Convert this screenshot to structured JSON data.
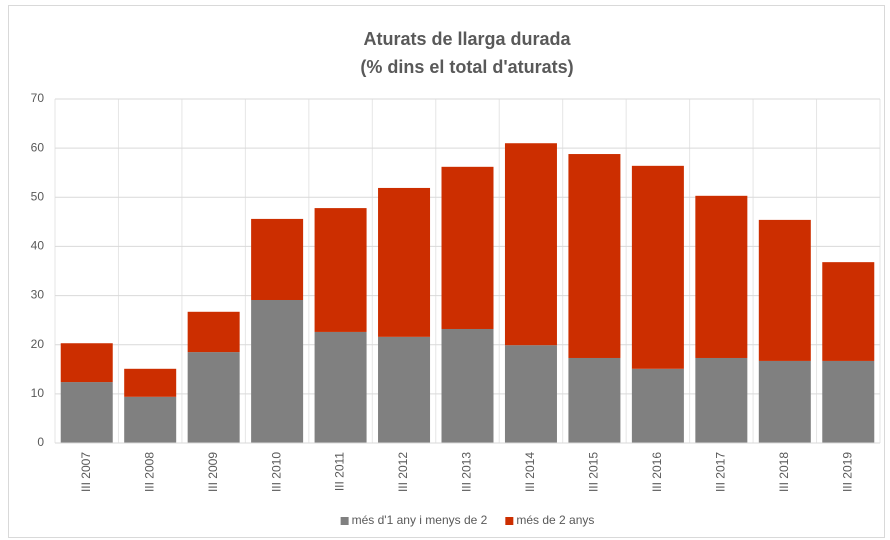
{
  "chart_data": {
    "type": "stacked_bar",
    "title": "Aturats de llarga durada",
    "subtitle": "(% dins el total d'aturats)",
    "categories": [
      "III 2007",
      "III 2008",
      "III 2009",
      "III 2010",
      "III 2011",
      "III 2012",
      "III 2013",
      "III 2014",
      "III 2015",
      "III 2016",
      "III 2017",
      "III 2018",
      "III 2019"
    ],
    "series": [
      {
        "name": "més d'1 any i menys de 2",
        "color": "#808080",
        "values": [
          12.4,
          9.4,
          18.5,
          29.1,
          22.6,
          21.6,
          23.2,
          19.9,
          17.3,
          15.1,
          17.3,
          16.7,
          16.7
        ]
      },
      {
        "name": "més de 2 anys",
        "color": "#cc2e00",
        "values": [
          7.9,
          5.7,
          8.2,
          16.5,
          25.2,
          30.3,
          33.0,
          41.1,
          41.5,
          41.3,
          33.0,
          28.7,
          20.1
        ]
      }
    ],
    "ylim": [
      0,
      70
    ],
    "yticks": [
      0,
      10,
      20,
      30,
      40,
      50,
      60,
      70
    ],
    "grid": true,
    "legend": "bottom"
  }
}
